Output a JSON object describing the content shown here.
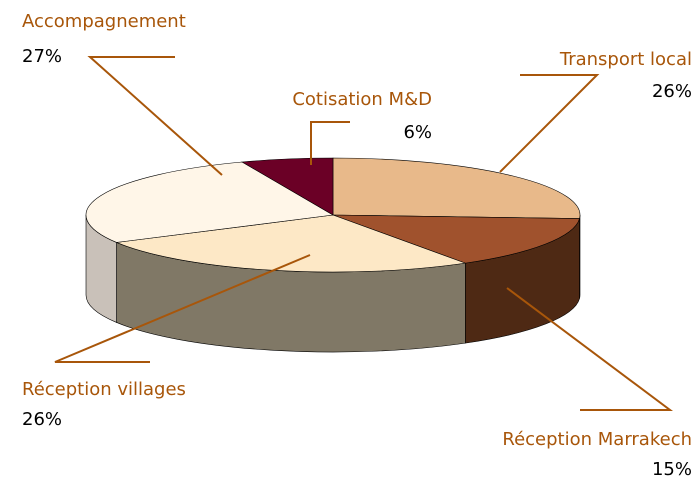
{
  "chart_data": {
    "type": "pie3d",
    "categories": [
      "Transport local",
      "Réception Marrakech",
      "Réception villages",
      "Accompagnement",
      "Cotisation M&D"
    ],
    "values": [
      26,
      15,
      26,
      27,
      6
    ],
    "value_labels": [
      "26%",
      "15%",
      "26%",
      "27%",
      "6%"
    ],
    "colors": [
      "#e8b98a",
      "#a0522d",
      "#fde8c6",
      "#fff6e8",
      "#6b0026"
    ],
    "side_colors": [
      "#a8794f",
      "#4e2914",
      "#807866",
      "#c9c1b9",
      "#3a0014"
    ]
  }
}
